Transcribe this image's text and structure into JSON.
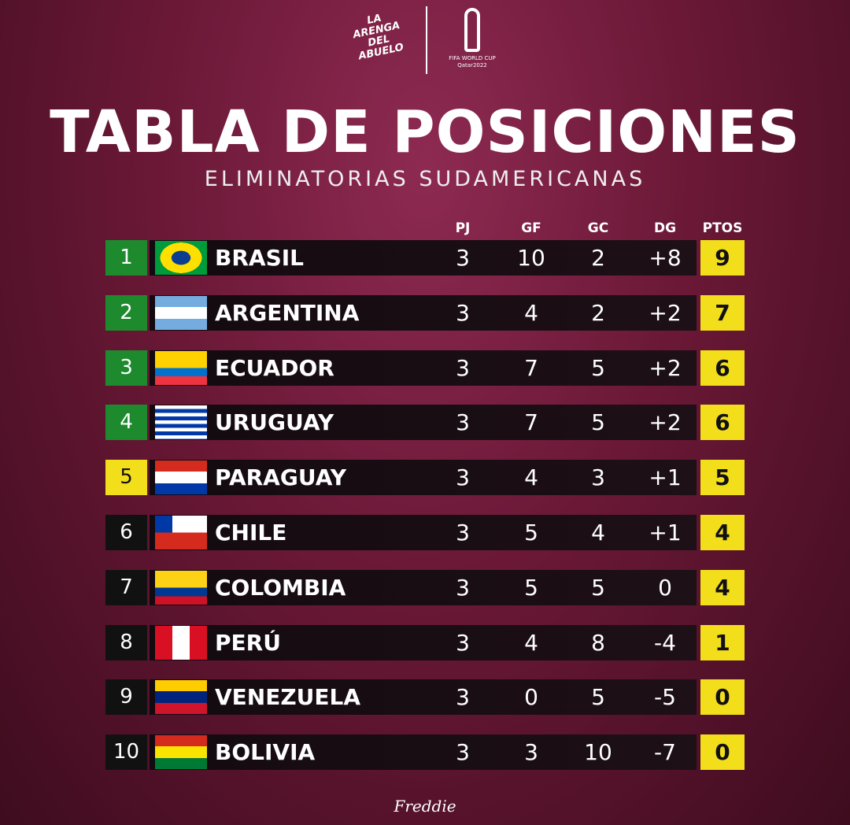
{
  "header": {
    "brand": "LA ARENGA DEL ABUELO",
    "cup": "FIFA WORLD CUP",
    "cup_place": "Qatar2022",
    "title": "TABLA DE POSICIONES",
    "subtitle": "ELIMINATORIAS SUDAMERICANAS"
  },
  "table": {
    "columns": [
      "PJ",
      "GF",
      "GC",
      "DG",
      "PTOS"
    ],
    "rows": [
      {
        "pos": "1",
        "team": "BRASIL",
        "pj": "3",
        "gf": "10",
        "gc": "2",
        "dg": "+8",
        "pts": "9",
        "color": "#1e8a2e"
      },
      {
        "pos": "2",
        "team": "ARGENTINA",
        "pj": "3",
        "gf": "4",
        "gc": "2",
        "dg": "+2",
        "pts": "7",
        "color": "#1e8a2e"
      },
      {
        "pos": "3",
        "team": "ECUADOR",
        "pj": "3",
        "gf": "7",
        "gc": "5",
        "dg": "+2",
        "pts": "6",
        "color": "#1e8a2e"
      },
      {
        "pos": "4",
        "team": "URUGUAY",
        "pj": "3",
        "gf": "7",
        "gc": "5",
        "dg": "+2",
        "pts": "6",
        "color": "#1e8a2e"
      },
      {
        "pos": "5",
        "team": "PARAGUAY",
        "pj": "3",
        "gf": "4",
        "gc": "3",
        "dg": "+1",
        "pts": "5",
        "color": "#f3de1c"
      },
      {
        "pos": "6",
        "team": "CHILE",
        "pj": "3",
        "gf": "5",
        "gc": "4",
        "dg": "+1",
        "pts": "4",
        "color": "#111111"
      },
      {
        "pos": "7",
        "team": "COLOMBIA",
        "pj": "3",
        "gf": "5",
        "gc": "5",
        "dg": "0",
        "pts": "4",
        "color": "#111111"
      },
      {
        "pos": "8",
        "team": "PERÚ",
        "pj": "3",
        "gf": "4",
        "gc": "8",
        "dg": "-4",
        "pts": "1",
        "color": "#111111"
      },
      {
        "pos": "9",
        "team": "VENEZUELA",
        "pj": "3",
        "gf": "0",
        "gc": "5",
        "dg": "-5",
        "pts": "0",
        "color": "#111111"
      },
      {
        "pos": "10",
        "team": "BOLIVIA",
        "pj": "3",
        "gf": "3",
        "gc": "10",
        "dg": "-7",
        "pts": "0",
        "color": "#111111"
      }
    ]
  },
  "footer": {
    "signature": "Freddie"
  }
}
